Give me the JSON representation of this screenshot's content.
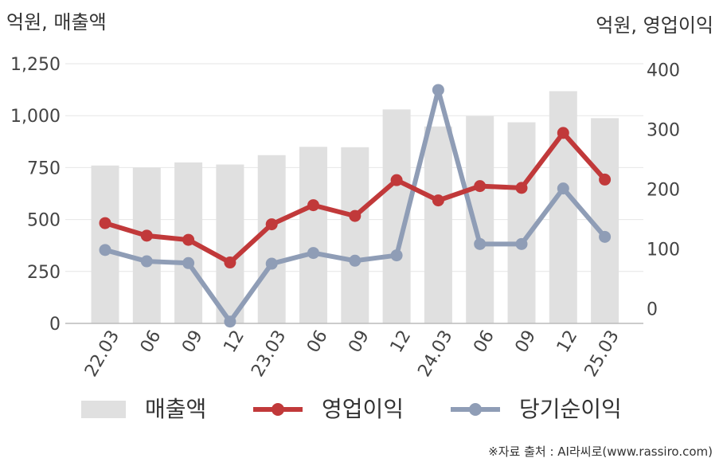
{
  "chart_data": {
    "type": "bar+line",
    "categories": [
      "22.03",
      "06",
      "09",
      "12",
      "23.03",
      "06",
      "09",
      "12",
      "24.03",
      "06",
      "09",
      "12",
      "25.03"
    ],
    "left_axis": {
      "unit_label": "억원, 매출액",
      "ylim": [
        0,
        1250
      ],
      "ticks": [
        "0",
        "250",
        "500",
        "750",
        "1,000",
        "1,250"
      ]
    },
    "right_axis": {
      "unit_label": "억원, 영업이익",
      "ylim": [
        -25,
        410
      ],
      "ticks": [
        "0",
        "100",
        "200",
        "300",
        "400"
      ]
    },
    "series": [
      {
        "name": "매출액",
        "type": "bar",
        "axis": "left",
        "color": "#e0e0e0",
        "values": [
          760,
          750,
          775,
          765,
          810,
          850,
          848,
          1030,
          948,
          998,
          968,
          1118,
          988
        ]
      },
      {
        "name": "영업이익",
        "type": "line",
        "axis": "right",
        "color": "#c1393a",
        "values": [
          143,
          122,
          115,
          77,
          141,
          173,
          155,
          215,
          181,
          205,
          202,
          294,
          216
        ]
      },
      {
        "name": "당기순이익",
        "type": "line",
        "axis": "right",
        "color": "#8f9db6",
        "values": [
          98,
          79,
          76,
          -22,
          75,
          93,
          80,
          89,
          366,
          108,
          108,
          201,
          120
        ]
      }
    ],
    "grid": true,
    "legend": "bottom"
  },
  "source_text": "※자료 출처 : AI라씨로(www.rassiro.com)"
}
